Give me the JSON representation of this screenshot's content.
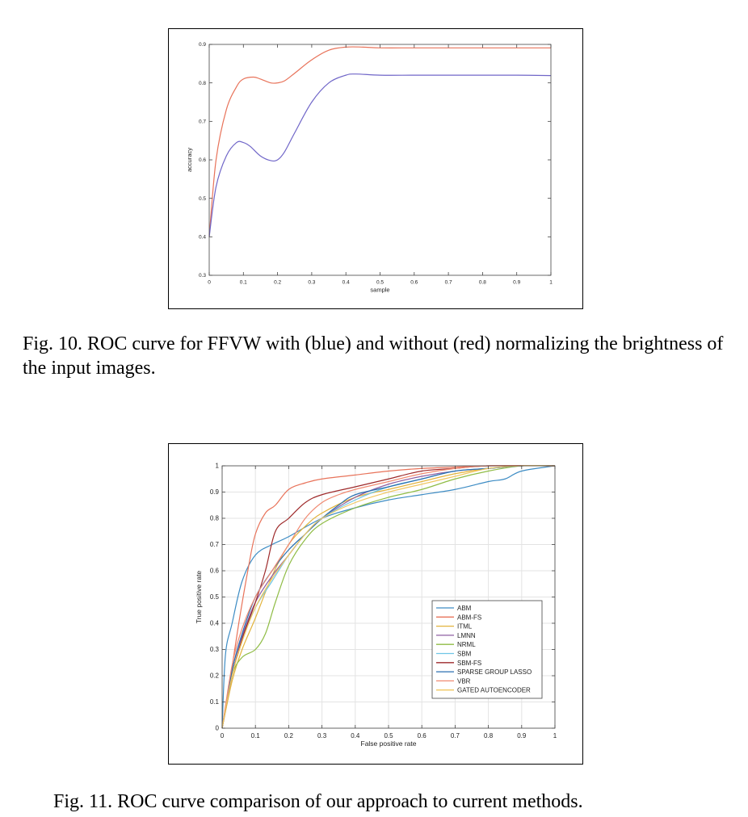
{
  "figures": [
    {
      "caption": "Fig. 10.  ROC curve for FFVW with (blue) and without (red) normalizing the brightness of the input images.",
      "chart_data": {
        "type": "line",
        "title": "",
        "xlabel": "sample",
        "ylabel": "accuracy",
        "xlim": [
          0,
          1
        ],
        "ylim": [
          0.3,
          0.9
        ],
        "xticks": [
          0,
          0.1,
          0.2,
          0.3,
          0.4,
          0.5,
          0.6,
          0.7,
          0.8,
          0.9,
          1
        ],
        "xtick_labels": [
          "0",
          "0.1",
          "0.2",
          "0.3",
          "0.4",
          "0.5",
          "0.6",
          "0.7",
          "0.8",
          "0.9",
          "1"
        ],
        "yticks": [
          0.3,
          0.4,
          0.5,
          0.6,
          0.7,
          0.8,
          0.9
        ],
        "ytick_labels": [
          "0.3",
          "0.4",
          "0.5",
          "0.6",
          "0.7",
          "0.8",
          "0.9"
        ],
        "grid": false,
        "series": [
          {
            "color": "#e8735a",
            "x": [
              0,
              0.02,
              0.05,
              0.08,
              0.1,
              0.13,
              0.15,
              0.18,
              0.2,
              0.22,
              0.25,
              0.3,
              0.35,
              0.4,
              0.45,
              0.5,
              0.6,
              0.7,
              0.8,
              0.9,
              1.0
            ],
            "y": [
              0.4,
              0.6,
              0.73,
              0.79,
              0.81,
              0.815,
              0.81,
              0.8,
              0.8,
              0.805,
              0.825,
              0.86,
              0.885,
              0.893,
              0.893,
              0.891,
              0.891,
              0.891,
              0.891,
              0.891,
              0.891
            ]
          },
          {
            "color": "#7066c8",
            "x": [
              0,
              0.02,
              0.05,
              0.08,
              0.1,
              0.12,
              0.15,
              0.18,
              0.2,
              0.22,
              0.25,
              0.3,
              0.35,
              0.4,
              0.43,
              0.5,
              0.6,
              0.7,
              0.8,
              0.9,
              1.0
            ],
            "y": [
              0.4,
              0.53,
              0.61,
              0.645,
              0.645,
              0.635,
              0.61,
              0.598,
              0.6,
              0.62,
              0.67,
              0.75,
              0.8,
              0.82,
              0.823,
              0.82,
              0.82,
              0.82,
              0.82,
              0.82,
              0.819
            ]
          }
        ]
      }
    },
    {
      "caption": "Fig. 11.  ROC curve comparison of our approach to current methods.",
      "chart_data": {
        "type": "line",
        "title": "",
        "xlabel": "False positive rate",
        "ylabel": "True positive rate",
        "xlim": [
          0,
          1
        ],
        "ylim": [
          0,
          1
        ],
        "xticks": [
          0,
          0.1,
          0.2,
          0.3,
          0.4,
          0.5,
          0.6,
          0.7,
          0.8,
          0.9,
          1
        ],
        "xtick_labels": [
          "0",
          "0.1",
          "0.2",
          "0.3",
          "0.4",
          "0.5",
          "0.6",
          "0.7",
          "0.8",
          "0.9",
          "1"
        ],
        "yticks": [
          0,
          0.1,
          0.2,
          0.3,
          0.4,
          0.5,
          0.6,
          0.7,
          0.8,
          0.9,
          1
        ],
        "ytick_labels": [
          "0",
          "0.1",
          "0.2",
          "0.3",
          "0.4",
          "0.5",
          "0.6",
          "0.7",
          "0.8",
          "0.9",
          "1"
        ],
        "grid": true,
        "legend_position": "lower-right",
        "series": [
          {
            "name": "ABM",
            "color": "#3d8cc4",
            "x": [
              0,
              0.01,
              0.03,
              0.06,
              0.1,
              0.15,
              0.2,
              0.3,
              0.4,
              0.5,
              0.6,
              0.7,
              0.8,
              0.85,
              0.9,
              1.0
            ],
            "y": [
              0,
              0.28,
              0.4,
              0.56,
              0.66,
              0.7,
              0.73,
              0.8,
              0.84,
              0.87,
              0.89,
              0.91,
              0.94,
              0.95,
              0.98,
              1.0
            ]
          },
          {
            "name": "ABM-FS",
            "color": "#e8735a",
            "x": [
              0,
              0.02,
              0.05,
              0.08,
              0.1,
              0.13,
              0.16,
              0.2,
              0.25,
              0.3,
              0.4,
              0.5,
              0.6,
              0.7,
              0.8,
              1.0
            ],
            "y": [
              0,
              0.15,
              0.4,
              0.62,
              0.74,
              0.82,
              0.85,
              0.91,
              0.935,
              0.95,
              0.965,
              0.98,
              0.99,
              0.995,
              1.0,
              1.0
            ]
          },
          {
            "name": "ITML",
            "color": "#e2b33c",
            "x": [
              0,
              0.03,
              0.06,
              0.1,
              0.15,
              0.2,
              0.25,
              0.3,
              0.4,
              0.5,
              0.6,
              0.7,
              0.8,
              0.9,
              1.0
            ],
            "y": [
              0,
              0.18,
              0.3,
              0.42,
              0.58,
              0.7,
              0.77,
              0.82,
              0.88,
              0.91,
              0.94,
              0.97,
              0.99,
              1.0,
              1.0
            ]
          },
          {
            "name": "LMNN",
            "color": "#8e5ea2",
            "x": [
              0,
              0.03,
              0.06,
              0.1,
              0.15,
              0.2,
              0.25,
              0.3,
              0.4,
              0.5,
              0.6,
              0.7,
              0.8,
              0.9,
              1.0
            ],
            "y": [
              0,
              0.22,
              0.35,
              0.48,
              0.58,
              0.66,
              0.74,
              0.8,
              0.88,
              0.93,
              0.96,
              0.98,
              0.99,
              1.0,
              1.0
            ]
          },
          {
            "name": "NRML",
            "color": "#8fbc45",
            "x": [
              0,
              0.03,
              0.06,
              0.1,
              0.13,
              0.16,
              0.2,
              0.25,
              0.3,
              0.4,
              0.5,
              0.6,
              0.7,
              0.8,
              0.9,
              1.0
            ],
            "y": [
              0,
              0.2,
              0.27,
              0.3,
              0.36,
              0.48,
              0.62,
              0.72,
              0.78,
              0.84,
              0.88,
              0.91,
              0.95,
              0.98,
              1.0,
              1.0
            ]
          },
          {
            "name": "SBM",
            "color": "#6fc6e6",
            "x": [
              0,
              0.03,
              0.06,
              0.1,
              0.15,
              0.2,
              0.25,
              0.3,
              0.4,
              0.5,
              0.6,
              0.7,
              0.8,
              0.9,
              1.0
            ],
            "y": [
              0,
              0.2,
              0.34,
              0.46,
              0.56,
              0.66,
              0.74,
              0.8,
              0.87,
              0.92,
              0.95,
              0.98,
              0.99,
              1.0,
              1.0
            ]
          },
          {
            "name": "SBM-FS",
            "color": "#9e2a2b",
            "x": [
              0,
              0.03,
              0.06,
              0.1,
              0.13,
              0.16,
              0.2,
              0.25,
              0.3,
              0.4,
              0.5,
              0.6,
              0.7,
              0.8,
              1.0
            ],
            "y": [
              0,
              0.2,
              0.34,
              0.48,
              0.6,
              0.75,
              0.8,
              0.86,
              0.89,
              0.92,
              0.95,
              0.98,
              0.99,
              1.0,
              1.0
            ]
          },
          {
            "name": "SPARSE GROUP LASSO",
            "color": "#2a6fb0",
            "x": [
              0,
              0.03,
              0.06,
              0.1,
              0.15,
              0.2,
              0.25,
              0.3,
              0.35,
              0.4,
              0.5,
              0.6,
              0.7,
              0.8,
              0.9,
              1.0
            ],
            "y": [
              0,
              0.22,
              0.36,
              0.5,
              0.6,
              0.68,
              0.74,
              0.8,
              0.85,
              0.89,
              0.92,
              0.95,
              0.98,
              0.99,
              1.0,
              1.0
            ]
          },
          {
            "name": "VBR",
            "color": "#f08a72",
            "x": [
              0,
              0.03,
              0.06,
              0.1,
              0.15,
              0.2,
              0.25,
              0.3,
              0.35,
              0.4,
              0.5,
              0.6,
              0.7,
              0.8,
              1.0
            ],
            "y": [
              0,
              0.24,
              0.38,
              0.5,
              0.6,
              0.7,
              0.8,
              0.86,
              0.89,
              0.91,
              0.94,
              0.97,
              0.99,
              1.0,
              1.0
            ]
          },
          {
            "name": "GATED AUTOENCODER",
            "color": "#f0c760",
            "x": [
              0,
              0.03,
              0.06,
              0.1,
              0.15,
              0.2,
              0.25,
              0.3,
              0.4,
              0.5,
              0.6,
              0.7,
              0.8,
              0.9,
              1.0
            ],
            "y": [
              0,
              0.2,
              0.33,
              0.46,
              0.57,
              0.66,
              0.74,
              0.8,
              0.86,
              0.9,
              0.93,
              0.96,
              0.99,
              1.0,
              1.0
            ]
          }
        ]
      }
    }
  ]
}
